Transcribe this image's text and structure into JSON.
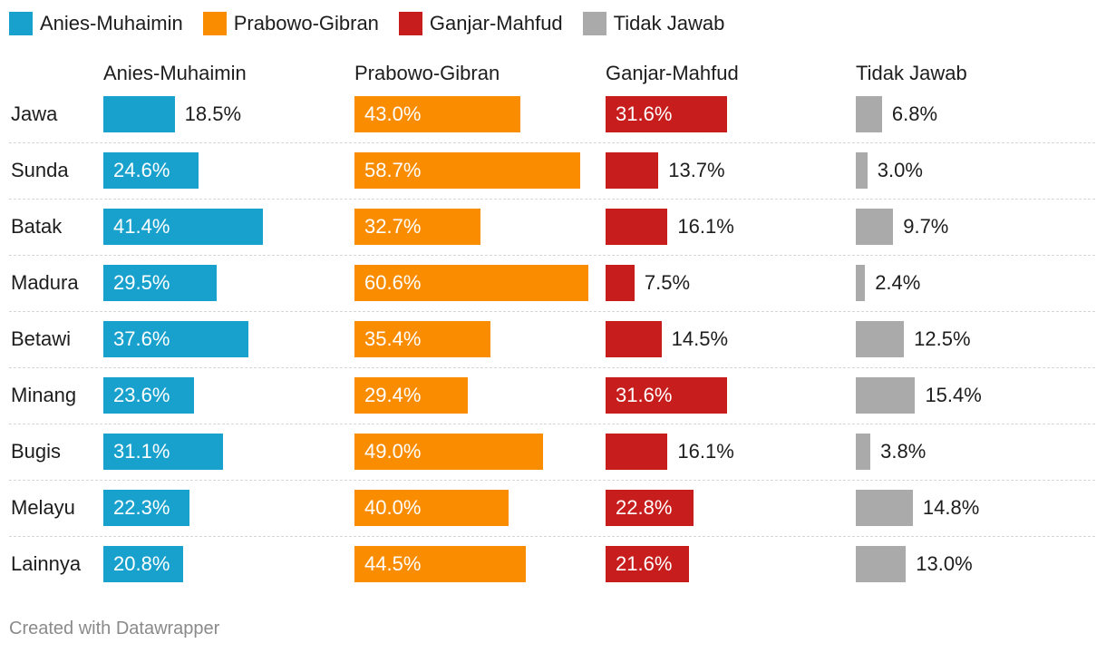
{
  "chart_data": {
    "type": "bar",
    "categories": [
      "Jawa",
      "Sunda",
      "Batak",
      "Madura",
      "Betawi",
      "Minang",
      "Bugis",
      "Melayu",
      "Lainnya"
    ],
    "series": [
      {
        "name": "Anies-Muhaimin",
        "color": "#18a1cd",
        "values": [
          18.5,
          24.6,
          41.4,
          29.5,
          37.6,
          23.6,
          31.1,
          22.3,
          20.8
        ]
      },
      {
        "name": "Prabowo-Gibran",
        "color": "#fa8c00",
        "values": [
          43.0,
          58.7,
          32.7,
          60.6,
          35.4,
          29.4,
          49.0,
          40.0,
          44.5
        ]
      },
      {
        "name": "Ganjar-Mahfud",
        "color": "#c71e1d",
        "values": [
          31.6,
          13.7,
          16.1,
          7.5,
          14.5,
          31.6,
          16.1,
          22.8,
          21.6
        ]
      },
      {
        "name": "Tidak Jawab",
        "color": "#aaaaaa",
        "values": [
          6.8,
          3.0,
          9.7,
          2.4,
          12.5,
          15.4,
          3.8,
          14.8,
          13.0
        ]
      }
    ],
    "value_suffix": "%",
    "legend_position": "top-left"
  },
  "footer": "Created with Datawrapper"
}
